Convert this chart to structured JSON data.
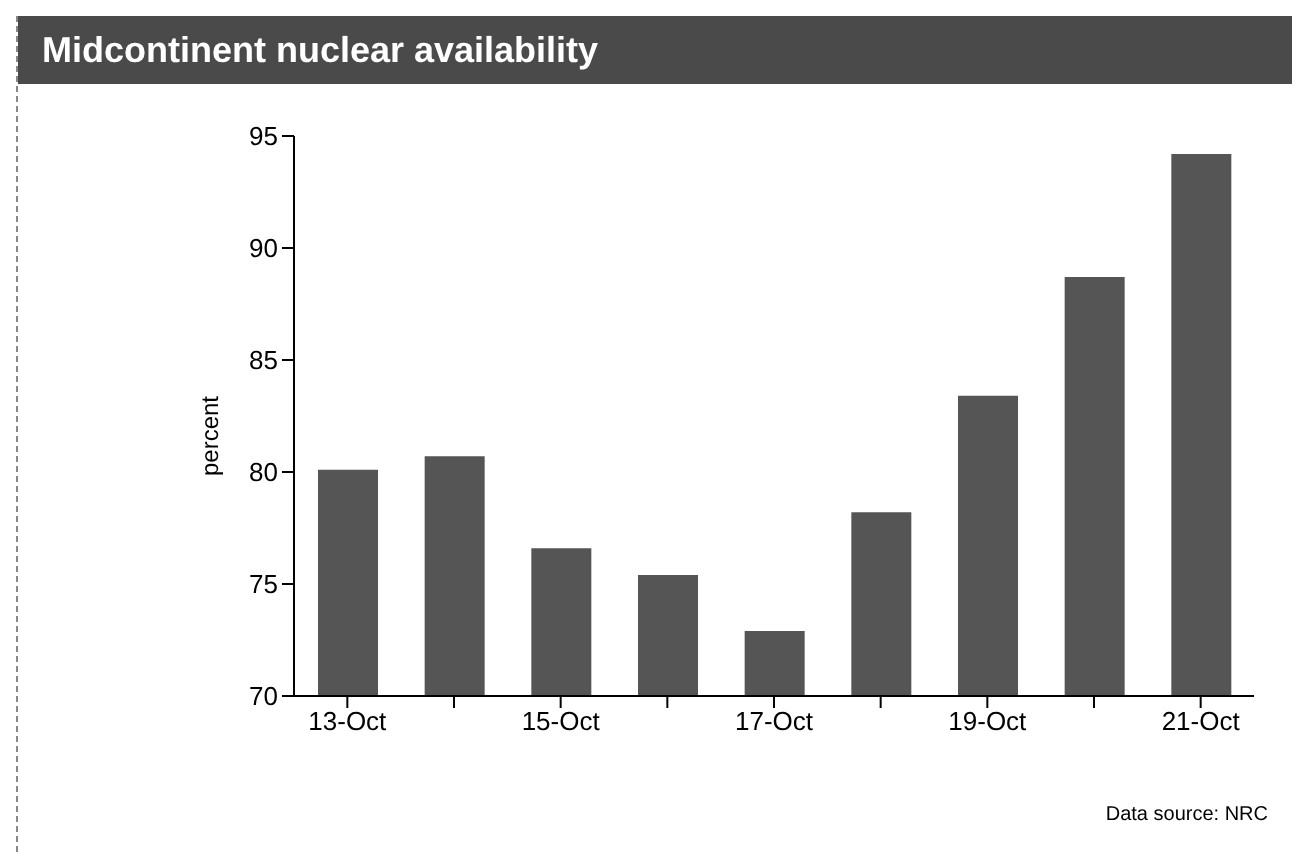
{
  "chart_data": {
    "type": "bar",
    "title": "Midcontinent nuclear availability",
    "ylabel": "percent",
    "categories": [
      "13-Oct",
      null,
      "15-Oct",
      null,
      "17-Oct",
      null,
      "19-Oct",
      null,
      "21-Oct"
    ],
    "values": [
      80.1,
      80.7,
      76.6,
      75.4,
      72.9,
      78.2,
      83.4,
      88.7,
      94.2
    ],
    "color": "#555555",
    "ylim": [
      70,
      95
    ],
    "yticks": [
      70,
      75,
      80,
      85,
      90,
      95
    ],
    "grid": false,
    "annotations": [
      "Data source: NRC"
    ]
  }
}
